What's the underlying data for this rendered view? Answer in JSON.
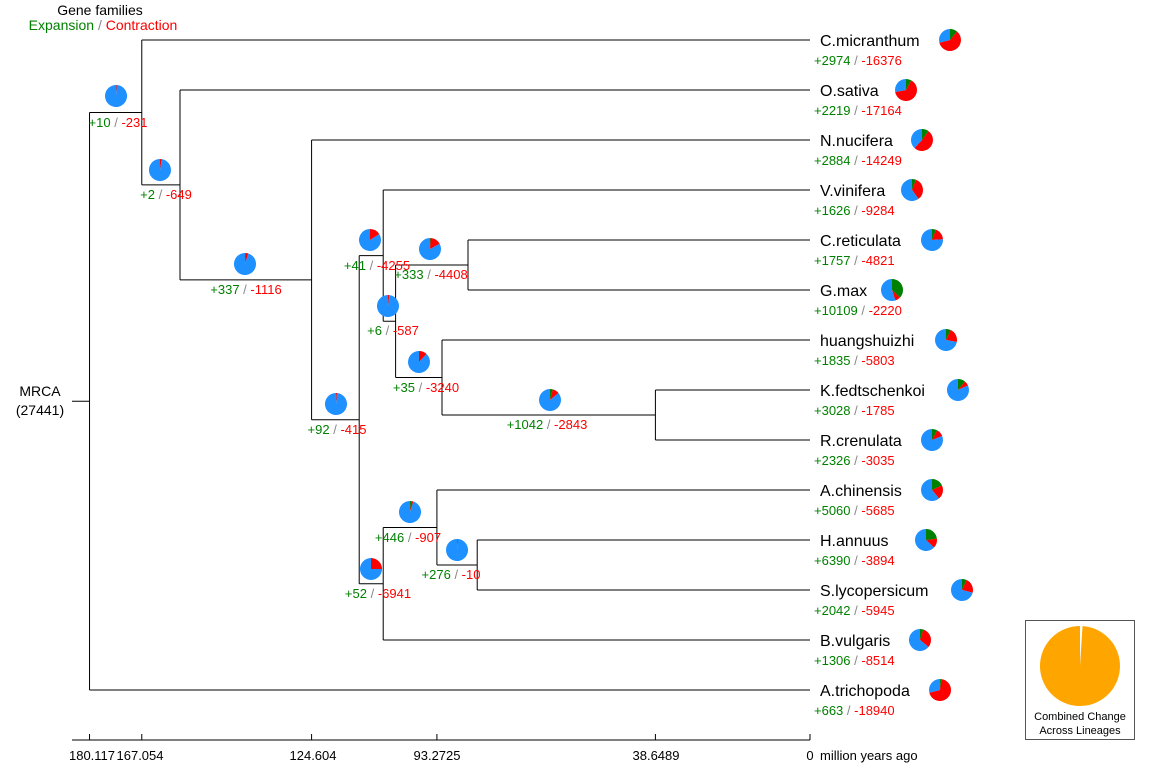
{
  "header": {
    "title": "Gene families",
    "expansion_label": "Expansion",
    "separator": "/",
    "contraction_label": "Contraction"
  },
  "root": {
    "label": "MRCA",
    "count": "(27441)"
  },
  "colors": {
    "expansion": "#008000",
    "contraction": "#ff0000",
    "unchanged": "#1e90ff",
    "combined": "#ffa500",
    "branch": "#000000"
  },
  "chart_data": {
    "type": "phylogenetic-tree",
    "axis": {
      "label": "million years ago",
      "ticks": [
        180.117,
        167.054,
        124.604,
        93.2725,
        38.6489,
        0
      ],
      "tick_labels": [
        "180.117",
        "167.054",
        "124.604",
        "93.2725",
        "38.6489",
        "0"
      ]
    },
    "taxa": [
      {
        "name": "C.micranthum",
        "gain": "+2974",
        "loss": "-16376",
        "pie": {
          "expansion": 0.11,
          "contraction": 0.6,
          "unchanged": 0.29
        }
      },
      {
        "name": "O.sativa",
        "gain": "+2219",
        "loss": "-17164",
        "pie": {
          "expansion": 0.08,
          "contraction": 0.64,
          "unchanged": 0.28
        }
      },
      {
        "name": "N.nucifera",
        "gain": "+2884",
        "loss": "-14249",
        "pie": {
          "expansion": 0.1,
          "contraction": 0.52,
          "unchanged": 0.38
        }
      },
      {
        "name": "V.vinifera",
        "gain": "+1626",
        "loss": "-9284",
        "pie": {
          "expansion": 0.06,
          "contraction": 0.34,
          "unchanged": 0.6
        }
      },
      {
        "name": "C.reticulata",
        "gain": "+1757",
        "loss": "-4821",
        "pie": {
          "expansion": 0.06,
          "contraction": 0.18,
          "unchanged": 0.76
        }
      },
      {
        "name": "G.max",
        "gain": "+10109",
        "loss": "-2220",
        "pie": {
          "expansion": 0.37,
          "contraction": 0.08,
          "unchanged": 0.55
        }
      },
      {
        "name": "huangshuizhi",
        "gain": "+1835",
        "loss": "-5803",
        "pie": {
          "expansion": 0.07,
          "contraction": 0.21,
          "unchanged": 0.72
        }
      },
      {
        "name": "K.fedtschenkoi",
        "gain": "+3028",
        "loss": "-1785",
        "pie": {
          "expansion": 0.11,
          "contraction": 0.07,
          "unchanged": 0.82
        }
      },
      {
        "name": "R.crenulata",
        "gain": "+2326",
        "loss": "-3035",
        "pie": {
          "expansion": 0.08,
          "contraction": 0.11,
          "unchanged": 0.81
        }
      },
      {
        "name": "A.chinensis",
        "gain": "+5060",
        "loss": "-5685",
        "pie": {
          "expansion": 0.18,
          "contraction": 0.21,
          "unchanged": 0.61
        }
      },
      {
        "name": "H.annuus",
        "gain": "+6390",
        "loss": "-3894",
        "pie": {
          "expansion": 0.23,
          "contraction": 0.14,
          "unchanged": 0.63
        }
      },
      {
        "name": "S.lycopersicum",
        "gain": "+2042",
        "loss": "-5945",
        "pie": {
          "expansion": 0.07,
          "contraction": 0.22,
          "unchanged": 0.71
        }
      },
      {
        "name": "B.vulgaris",
        "gain": "+1306",
        "loss": "-8514",
        "pie": {
          "expansion": 0.05,
          "contraction": 0.31,
          "unchanged": 0.64
        }
      },
      {
        "name": "A.trichopoda",
        "gain": "+663",
        "loss": "-18940",
        "pie": {
          "expansion": 0.02,
          "contraction": 0.69,
          "unchanged": 0.29
        }
      }
    ],
    "internal_nodes": [
      {
        "gain": "+10",
        "loss": "-231",
        "pie": {
          "expansion": 0.0,
          "contraction": 0.01,
          "unchanged": 0.99
        }
      },
      {
        "gain": "+2",
        "loss": "-649",
        "pie": {
          "expansion": 0.0,
          "contraction": 0.025,
          "unchanged": 0.975
        }
      },
      {
        "gain": "+337",
        "loss": "-1116",
        "pie": {
          "expansion": 0.01,
          "contraction": 0.04,
          "unchanged": 0.95
        }
      },
      {
        "gain": "+92",
        "loss": "-415",
        "pie": {
          "expansion": 0.0,
          "contraction": 0.015,
          "unchanged": 0.985
        }
      },
      {
        "gain": "+41",
        "loss": "-4255",
        "pie": {
          "expansion": 0.0,
          "contraction": 0.16,
          "unchanged": 0.84
        }
      },
      {
        "gain": "+333",
        "loss": "-4408",
        "pie": {
          "expansion": 0.01,
          "contraction": 0.16,
          "unchanged": 0.83
        }
      },
      {
        "gain": "+6",
        "loss": "-587",
        "pie": {
          "expansion": 0.0,
          "contraction": 0.02,
          "unchanged": 0.98
        }
      },
      {
        "gain": "+35",
        "loss": "-3240",
        "pie": {
          "expansion": 0.0,
          "contraction": 0.12,
          "unchanged": 0.88
        }
      },
      {
        "gain": "+1042",
        "loss": "-2843",
        "pie": {
          "expansion": 0.04,
          "contraction": 0.1,
          "unchanged": 0.86
        }
      },
      {
        "gain": "+52",
        "loss": "-6941",
        "pie": {
          "expansion": 0.0,
          "contraction": 0.25,
          "unchanged": 0.75
        }
      },
      {
        "gain": "+446",
        "loss": "-907",
        "pie": {
          "expansion": 0.02,
          "contraction": 0.03,
          "unchanged": 0.95
        }
      },
      {
        "gain": "+276",
        "loss": "-10",
        "pie": {
          "expansion": 0.01,
          "contraction": 0.0,
          "unchanged": 0.99
        }
      }
    ],
    "combined": {
      "label_line1": "Combined Change",
      "label_line2": "Across Lineages",
      "pie": {
        "changed": 0.01,
        "combined": 0.99
      }
    }
  }
}
